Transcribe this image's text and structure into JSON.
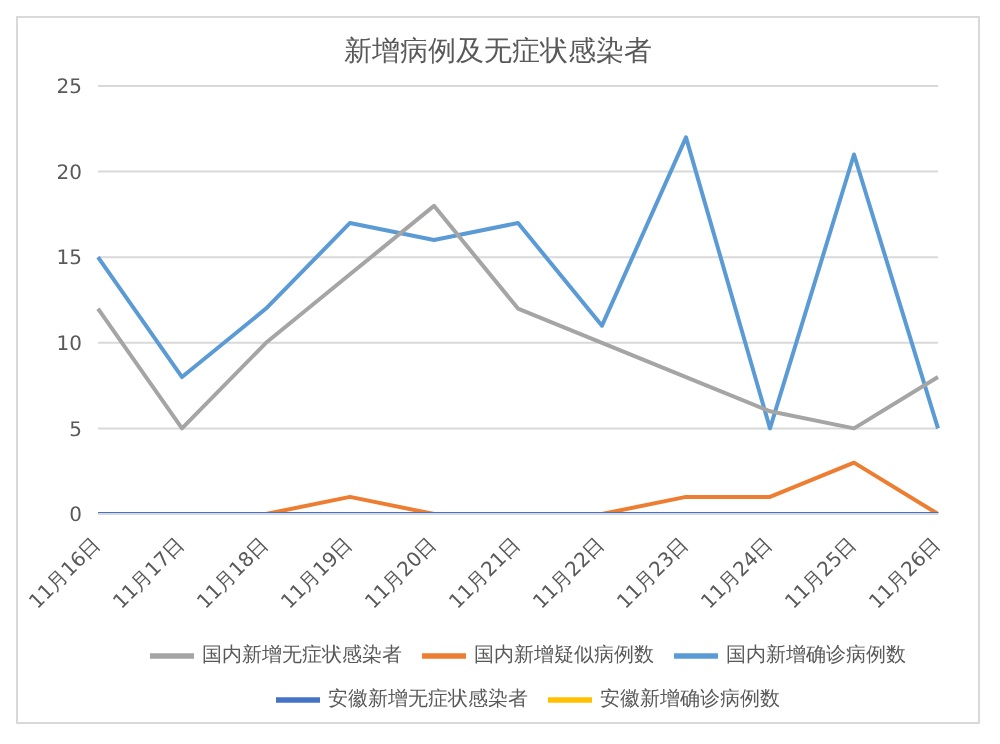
{
  "chart_data": {
    "type": "line",
    "title": "新增病例及无症状感染者",
    "categories": [
      "11月16日",
      "11月17日",
      "11月18日",
      "11月19日",
      "11月20日",
      "11月21日",
      "11月22日",
      "11月23日",
      "11月24日",
      "11月25日",
      "11月26日"
    ],
    "series": [
      {
        "name": "国内新增确诊病例数",
        "color": "#5b9bd5",
        "values": [
          15,
          8,
          12,
          17,
          16,
          17,
          11,
          22,
          5,
          21,
          5
        ]
      },
      {
        "name": "国内新增疑似病例数",
        "color": "#ed7d31",
        "values": [
          0,
          0,
          0,
          1,
          0,
          0,
          0,
          1,
          1,
          3,
          0
        ]
      },
      {
        "name": "国内新增无症状感染者",
        "color": "#a5a5a5",
        "values": [
          12,
          5,
          10,
          14,
          18,
          12,
          10,
          8,
          6,
          5,
          8
        ]
      },
      {
        "name": "安徽新增确诊病例数",
        "color": "#ffc000",
        "values": [
          null,
          null,
          null,
          null,
          null,
          null,
          null,
          null,
          null,
          null,
          null
        ]
      },
      {
        "name": "安徽新增无症状感染者",
        "color": "#4472c4",
        "values": [
          0,
          0,
          0,
          0,
          0,
          0,
          0,
          0,
          0,
          0,
          0
        ]
      }
    ],
    "ylim": [
      0,
      25
    ],
    "yticks": [
      0,
      5,
      10,
      15,
      20,
      25
    ],
    "grid": "y",
    "legend": "bottom",
    "marker": "none",
    "line_style": "solid"
  }
}
